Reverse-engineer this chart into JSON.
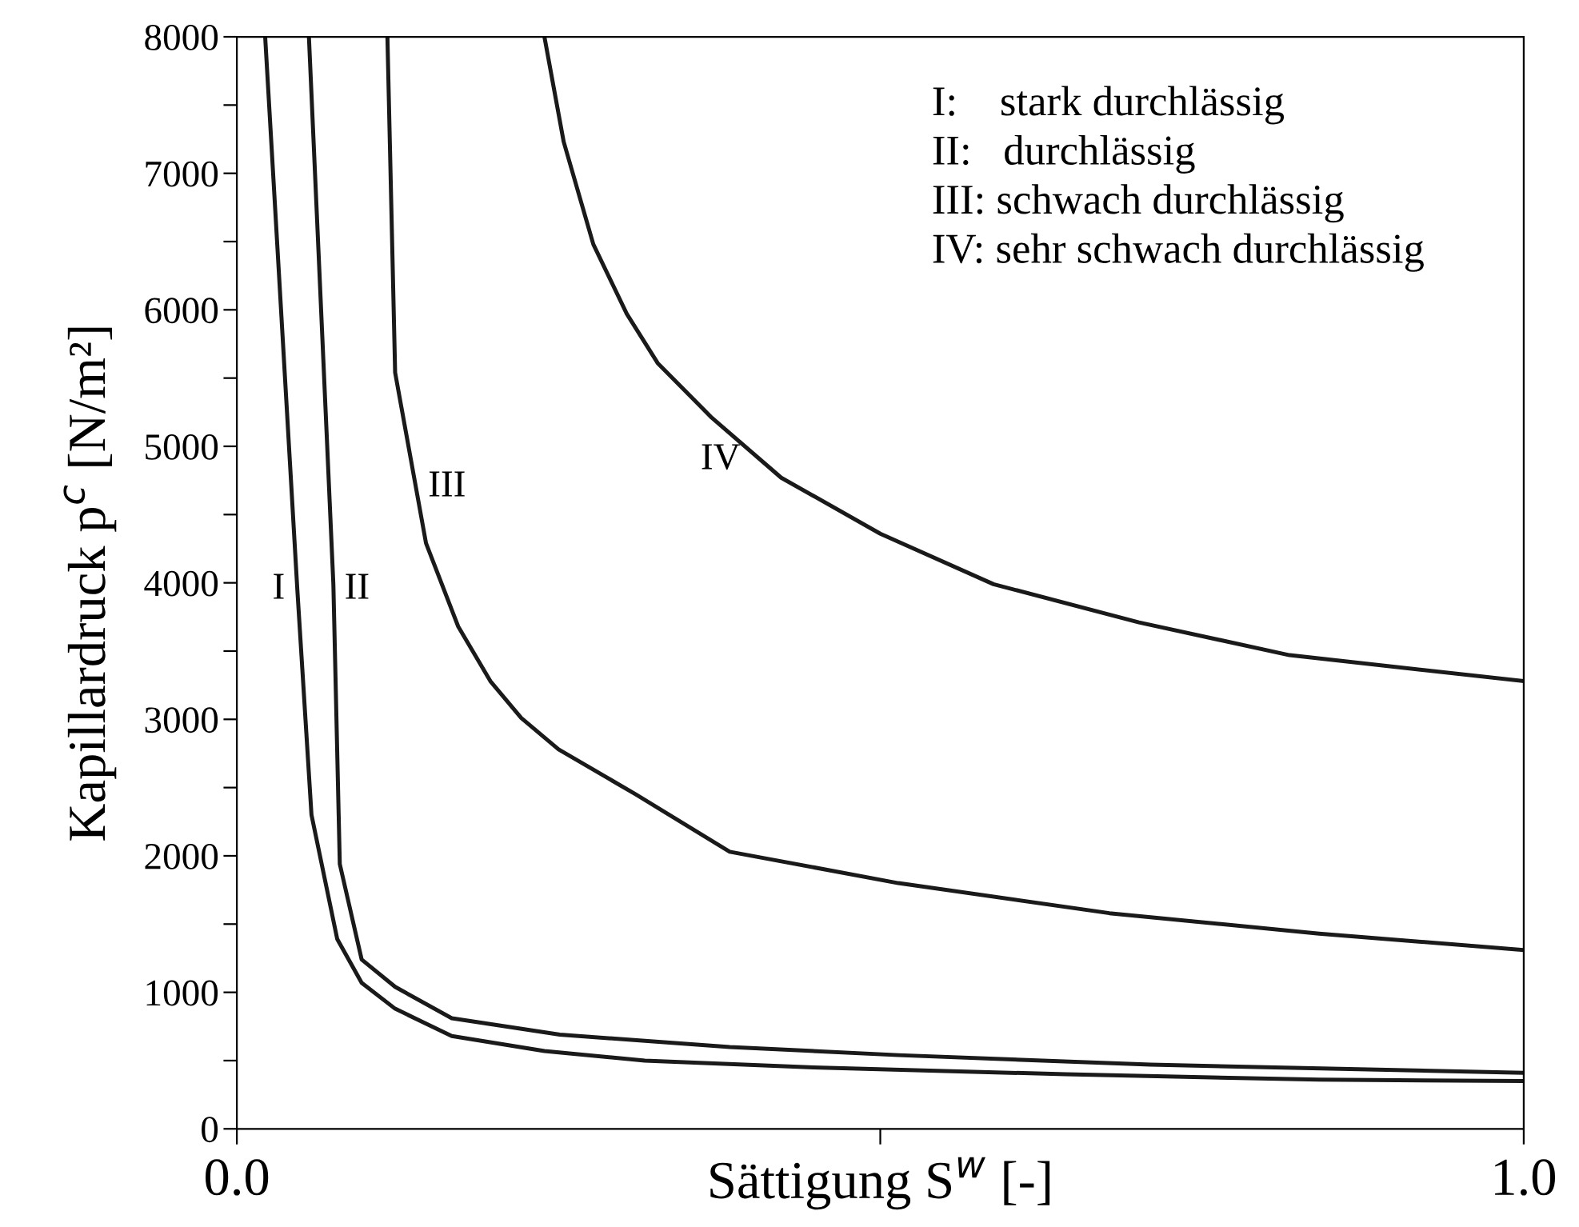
{
  "chart_data": {
    "type": "line",
    "xlabel": "Sättigung S$^{w}$ [-]",
    "ylabel": "Kapillardruck p$^{c}$ [N/m²]",
    "xlim": [
      0,
      1
    ],
    "ylim": [
      0,
      8000
    ],
    "xticks": [
      {
        "value": 0,
        "label": "0.0"
      },
      {
        "value": 0.5,
        "label": null
      },
      {
        "value": 1,
        "label": "1.0"
      }
    ],
    "yticks": [
      0,
      {
        "value": 500,
        "label": null
      },
      1000,
      {
        "value": 1500,
        "label": null
      },
      2000,
      {
        "value": 2500,
        "label": null
      },
      3000,
      {
        "value": 3500,
        "label": null
      },
      4000,
      {
        "value": 4500,
        "label": null
      },
      5000,
      {
        "value": 5500,
        "label": null
      },
      6000,
      {
        "value": 6500,
        "label": null
      },
      7000,
      {
        "value": 7500,
        "label": null
      },
      8000
    ],
    "grid": false,
    "legend": false,
    "marker": "none",
    "line_style": "solid",
    "series": [
      {
        "color": "#1a1a1a",
        "x": [
          0.022,
          0.047,
          0.058,
          0.078,
          0.097,
          0.123,
          0.167,
          0.239,
          0.317,
          0.448,
          0.644,
          0.841,
          1.0
        ],
        "values": [
          8000,
          3950,
          2300,
          1390,
          1070,
          880,
          680,
          570,
          500,
          450,
          400,
          360,
          350
        ]
      },
      {
        "color": "#1a1a1a",
        "x": [
          0.056,
          0.075,
          0.08,
          0.097,
          0.123,
          0.167,
          0.251,
          0.383,
          0.514,
          0.71,
          1.0
        ],
        "values": [
          8000,
          3990,
          1940,
          1240,
          1040,
          810,
          690,
          600,
          540,
          470,
          410
        ]
      },
      {
        "color": "#1a1a1a",
        "x": [
          0.117,
          0.123,
          0.147,
          0.172,
          0.197,
          0.221,
          0.25,
          0.31,
          0.383,
          0.514,
          0.678,
          0.841,
          1.0
        ],
        "values": [
          8000,
          5540,
          4290,
          3680,
          3280,
          3010,
          2780,
          2450,
          2030,
          1800,
          1580,
          1430,
          1310
        ]
      },
      {
        "color": "#1a1a1a",
        "x": [
          0.239,
          0.254,
          0.277,
          0.303,
          0.327,
          0.369,
          0.423,
          0.5,
          0.588,
          0.701,
          0.818,
          1.0
        ],
        "values": [
          8000,
          7230,
          6480,
          5970,
          5610,
          5210,
          4770,
          4360,
          3990,
          3710,
          3470,
          3280
        ]
      }
    ],
    "annotations": [
      {
        "text": "I",
        "x": 0.046,
        "y": 3950
      },
      {
        "text": "II",
        "x": 0.075,
        "y": 3950
      },
      {
        "text": "III",
        "x": 0.14,
        "y": 4700
      },
      {
        "text": "IV",
        "x": 0.4,
        "y": 4900
      },
      "I:    stark durchlässig",
      "II:   durchlässig",
      "III: schwach durchlässig",
      "IV: sehr schwach durchlässig"
    ]
  }
}
